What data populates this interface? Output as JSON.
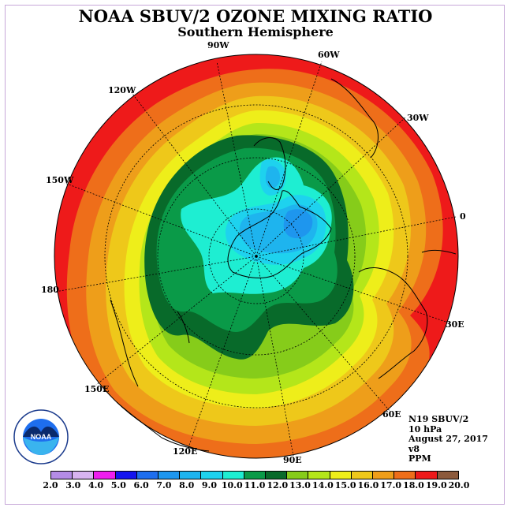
{
  "header": {
    "title": "NOAA SBUV/2 OZONE MIXING RATIO",
    "subtitle": "Southern Hemisphere"
  },
  "longitudes": [
    {
      "key": "90w",
      "text": "90W"
    },
    {
      "key": "60w",
      "text": "60W"
    },
    {
      "key": "120w",
      "text": "120W"
    },
    {
      "key": "30w",
      "text": "30W"
    },
    {
      "key": "150w",
      "text": "150W"
    },
    {
      "key": "0",
      "text": "0"
    },
    {
      "key": "180",
      "text": "180"
    },
    {
      "key": "30e",
      "text": "30E"
    },
    {
      "key": "150e",
      "text": "150E"
    },
    {
      "key": "60e",
      "text": "60E"
    },
    {
      "key": "120e",
      "text": "120E"
    },
    {
      "key": "90e",
      "text": "90E"
    }
  ],
  "info": {
    "satellite": "N19 SBUV/2",
    "level": "10 hPa",
    "date": "August 27, 2017",
    "version": "v8",
    "units": "PPM"
  },
  "logo": {
    "text": "NOAA",
    "icon": "noaa-logo-icon"
  },
  "colorbar": {
    "ticks": [
      "2.0",
      "3.0",
      "4.0",
      "5.0",
      "6.0",
      "7.0",
      "8.0",
      "9.0",
      "10.0",
      "11.0",
      "12.0",
      "13.0",
      "14.0",
      "15.0",
      "16.0",
      "17.0",
      "18.0",
      "19.0",
      "20.0"
    ],
    "colors": [
      "#b48ce6",
      "#d8b4f0",
      "#ee1eee",
      "#1414ee",
      "#1e6eee",
      "#1e96ee",
      "#1eb4ee",
      "#1ed2ee",
      "#1eeed2",
      "#0a9a48",
      "#086a2a",
      "#86cc1a",
      "#b4e61a",
      "#eeee1a",
      "#eec81a",
      "#ee9e1a",
      "#ee6e1a",
      "#ee1a1a",
      "#8c5a3c"
    ]
  },
  "map_data": {
    "projection": "south polar stereographic",
    "parameter": "Ozone mixing ratio",
    "range_ppm": [
      2.0,
      20.0
    ]
  }
}
